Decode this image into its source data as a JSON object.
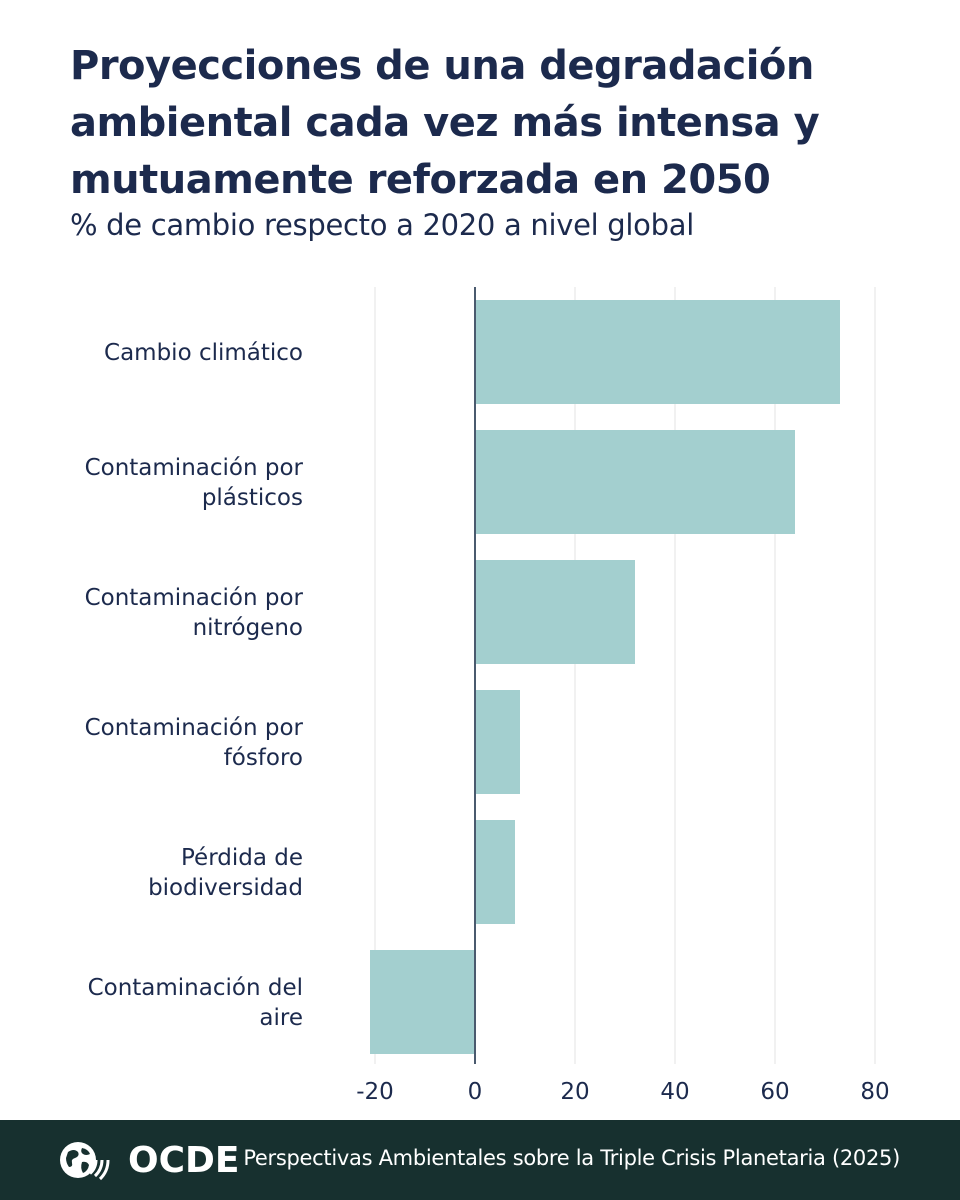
{
  "header": {
    "title": "Proyecciones de una degradación ambiental cada vez más intensa y mutuamente reforzada en 2050",
    "subtitle": "% de cambio respecto a 2020 a nivel global"
  },
  "chart_data": {
    "type": "bar",
    "orientation": "horizontal",
    "categories": [
      [
        "Cambio climático"
      ],
      [
        "Contaminación por",
        "plásticos"
      ],
      [
        "Contaminación por",
        "nitrógeno"
      ],
      [
        "Contaminación por",
        "fósforo"
      ],
      [
        "Pérdida de",
        "biodiversidad"
      ],
      [
        "Contaminación del",
        "aire"
      ]
    ],
    "values": [
      73,
      64,
      32,
      9,
      8,
      -21
    ],
    "xlim": [
      -21,
      81
    ],
    "xticks": [
      -20,
      0,
      20,
      40,
      60,
      80
    ],
    "grid": true,
    "bar_color": "#a3cfcf",
    "axis_color": "#4a5a6e"
  },
  "footer": {
    "logo_text": "OCDE",
    "source": "Perspectivas Ambientales sobre la Triple Crisis Planetaria (2025)"
  },
  "colors": {
    "text": "#1c2a4d",
    "footer_bg": "#17302f"
  }
}
